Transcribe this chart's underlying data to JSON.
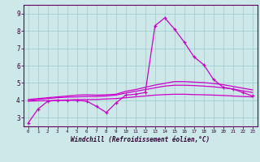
{
  "xlabel": "Windchill (Refroidissement éolien,°C)",
  "bg_color": "#cce8e8",
  "line_color": "#cc00cc",
  "grid_color": "#99cccc",
  "axis_color": "#660066",
  "text_color": "#330033",
  "xlim": [
    -0.5,
    23.5
  ],
  "ylim": [
    2.5,
    9.5
  ],
  "xticks": [
    0,
    1,
    2,
    3,
    4,
    5,
    6,
    7,
    8,
    9,
    10,
    11,
    12,
    13,
    14,
    15,
    16,
    17,
    18,
    19,
    20,
    21,
    22,
    23
  ],
  "yticks": [
    3,
    4,
    5,
    6,
    7,
    8,
    9
  ],
  "ytick_labels": [
    "3",
    "4",
    "5",
    "6",
    "7",
    "8",
    "9"
  ],
  "series1_x": [
    0,
    1,
    2,
    3,
    4,
    5,
    6,
    7,
    8,
    9,
    10,
    11,
    12,
    13,
    14,
    15,
    16,
    17,
    18,
    19,
    20,
    21,
    22,
    23
  ],
  "series1_y": [
    2.7,
    3.5,
    3.95,
    4.0,
    4.0,
    4.0,
    3.95,
    3.65,
    3.3,
    3.85,
    4.3,
    4.35,
    4.45,
    8.3,
    8.75,
    8.1,
    7.35,
    6.5,
    6.05,
    5.2,
    4.75,
    4.65,
    4.45,
    4.25
  ],
  "series2_x": [
    0,
    1,
    2,
    3,
    4,
    5,
    6,
    7,
    8,
    9,
    10,
    11,
    12,
    13,
    14,
    15,
    16,
    17,
    18,
    19,
    20,
    21,
    22,
    23
  ],
  "series2_y": [
    3.95,
    3.97,
    3.98,
    4.0,
    4.02,
    4.04,
    4.05,
    4.05,
    4.08,
    4.1,
    4.15,
    4.2,
    4.25,
    4.3,
    4.33,
    4.35,
    4.35,
    4.33,
    4.32,
    4.3,
    4.28,
    4.25,
    4.22,
    4.2
  ],
  "series3_x": [
    0,
    1,
    2,
    3,
    4,
    5,
    6,
    7,
    8,
    9,
    10,
    11,
    12,
    13,
    14,
    15,
    16,
    17,
    18,
    19,
    20,
    21,
    22,
    23
  ],
  "series3_y": [
    3.98,
    4.05,
    4.1,
    4.15,
    4.18,
    4.2,
    4.22,
    4.22,
    4.25,
    4.3,
    4.42,
    4.52,
    4.62,
    4.72,
    4.82,
    4.87,
    4.87,
    4.85,
    4.82,
    4.78,
    4.72,
    4.65,
    4.55,
    4.45
  ],
  "series4_x": [
    0,
    1,
    2,
    3,
    4,
    5,
    6,
    7,
    8,
    9,
    10,
    11,
    12,
    13,
    14,
    15,
    16,
    17,
    18,
    19,
    20,
    21,
    22,
    23
  ],
  "series4_y": [
    4.05,
    4.1,
    4.15,
    4.2,
    4.25,
    4.3,
    4.32,
    4.3,
    4.32,
    4.35,
    4.52,
    4.62,
    4.75,
    4.88,
    4.98,
    5.08,
    5.08,
    5.05,
    5.02,
    4.97,
    4.9,
    4.8,
    4.7,
    4.6
  ]
}
